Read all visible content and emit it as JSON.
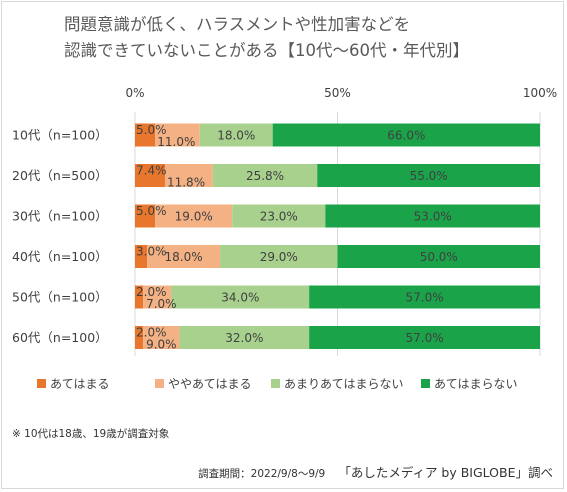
{
  "title_lines": [
    "問題意識が低く、ハラスメントや性加害などを",
    "認識できていないことがある【10代～60代・年代別】"
  ],
  "note": "※ 10代は18歳、19歳が調査対象",
  "footer": {
    "period": "調査期間：2022/9/8～9/9",
    "credit": "「あしたメディア by BIGLOBE」調べ"
  },
  "colors": [
    "#e8762d",
    "#f4b183",
    "#a9d18e",
    "#1ba34a"
  ],
  "chart_data": {
    "type": "bar",
    "orientation": "horizontal",
    "stacked": true,
    "percent_axis": true,
    "xlim": [
      0,
      100
    ],
    "xticks": [
      "0%",
      "50%",
      "100%"
    ],
    "categories": [
      "10代（n=100）",
      "20代（n=500）",
      "30代（n=100）",
      "40代（n=100）",
      "50代（n=100）",
      "60代（n=100）"
    ],
    "series": [
      {
        "name": "あてはまる",
        "values": [
          5.0,
          7.4,
          5.0,
          3.0,
          2.0,
          2.0
        ],
        "labels": [
          "5.0%",
          "7.4%",
          "5.0%",
          "3.0%",
          "2.0%",
          "2.0%"
        ]
      },
      {
        "name": "ややあてはまる",
        "values": [
          11.0,
          11.8,
          19.0,
          18.0,
          7.0,
          9.0
        ],
        "labels": [
          "11.0%",
          "11.8%",
          "19.0%",
          "18.0%",
          "7.0%",
          "9.0%"
        ]
      },
      {
        "name": "あまりあてはまらない",
        "values": [
          18.0,
          25.8,
          23.0,
          29.0,
          34.0,
          32.0
        ],
        "labels": [
          "18.0%",
          "25.8%",
          "23.0%",
          "29.0%",
          "34.0%",
          "32.0%"
        ]
      },
      {
        "name": "あてはまらない",
        "values": [
          66.0,
          55.0,
          53.0,
          50.0,
          57.0,
          57.0
        ],
        "labels": [
          "66.0%",
          "55.0%",
          "53.0%",
          "50.0%",
          "57.0%",
          "57.0%"
        ]
      }
    ],
    "legend_position": "bottom",
    "grid": true
  }
}
